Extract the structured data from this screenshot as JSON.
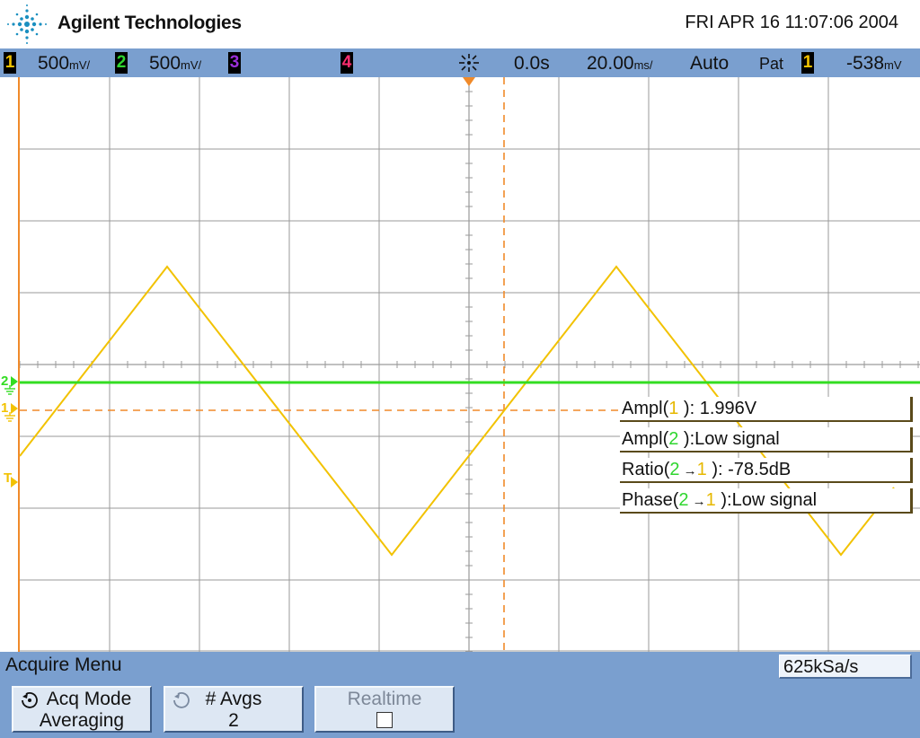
{
  "header": {
    "brand": "Agilent Technologies",
    "datetime": "FRI APR 16 11:07:06 2004"
  },
  "status": {
    "ch1": {
      "num": "1",
      "scale": "500",
      "unit": "mV/",
      "color": "#f2c200"
    },
    "ch2": {
      "num": "2",
      "scale": "500",
      "unit": "mV/",
      "color": "#2fd62f"
    },
    "ch3": {
      "num": "3",
      "color": "#9b30d9"
    },
    "ch4": {
      "num": "4",
      "color": "#ff2d6f"
    },
    "trigger_icon": "trigger-sun-icon",
    "delay": "0.0s",
    "timebase": "20.00",
    "timebase_unit": "ms/",
    "mode": "Auto",
    "trig_type": "Pat",
    "trig_ch": "1",
    "trig_level": "-538",
    "trig_level_unit": "mV"
  },
  "markers": {
    "ch2": "2",
    "ch1": "1",
    "trigger": "T"
  },
  "measurements": {
    "ampl1": {
      "name": "Ampl(",
      "ch": "1",
      "rest": " ): 1.996V"
    },
    "ampl2": {
      "name": "Ampl(",
      "ch": "2",
      "rest": " ):Low signal"
    },
    "ratio": {
      "name": "Ratio(",
      "ch_a": "2",
      "arrow": " →",
      "ch_b": "1",
      "rest": " ): -78.5dB"
    },
    "phase": {
      "name": "Phase(",
      "ch_a": "2",
      "arrow": " →",
      "ch_b": "1",
      "rest": " ):Low signal"
    }
  },
  "waveform": {
    "ch1_type": "triangle",
    "ch1_amplitude_V": 1.996,
    "ch2_state": "flat",
    "colors": {
      "ch1": "#f2c200",
      "ch2": "#33dd22",
      "grid": "#9a9a9a",
      "cursor": "#f08a2a"
    }
  },
  "menu": {
    "title": "Acquire Menu",
    "sample_rate": "625kSa/s",
    "softkeys": [
      {
        "icon": "rotate-knob-icon",
        "line1": "Acq Mode",
        "line2": "Averaging"
      },
      {
        "icon": "rotate-knob-icon",
        "line1": "# Avgs",
        "line2": "2"
      },
      {
        "line1": "Realtime",
        "checkbox": false
      }
    ]
  }
}
